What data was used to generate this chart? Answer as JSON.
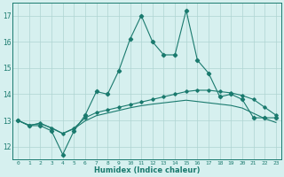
{
  "xlabel": "Humidex (Indice chaleur)",
  "x": [
    0,
    1,
    2,
    3,
    4,
    5,
    6,
    7,
    8,
    9,
    10,
    11,
    12,
    13,
    14,
    15,
    16,
    17,
    18,
    19,
    20,
    21,
    22,
    23
  ],
  "line1": [
    13.0,
    12.8,
    12.8,
    12.6,
    11.7,
    12.6,
    13.2,
    14.1,
    14.0,
    14.9,
    16.1,
    17.0,
    16.0,
    15.5,
    15.5,
    17.2,
    15.3,
    14.8,
    13.9,
    14.0,
    13.8,
    13.1,
    13.1,
    13.1
  ],
  "line2": [
    13.0,
    12.8,
    12.9,
    12.7,
    12.5,
    12.7,
    13.1,
    13.3,
    13.4,
    13.5,
    13.6,
    13.7,
    13.8,
    13.9,
    14.0,
    14.1,
    14.15,
    14.15,
    14.1,
    14.05,
    13.95,
    13.8,
    13.5,
    13.2
  ],
  "line3": [
    13.0,
    12.82,
    12.87,
    12.72,
    12.5,
    12.68,
    12.98,
    13.18,
    13.28,
    13.38,
    13.48,
    13.56,
    13.62,
    13.67,
    13.72,
    13.77,
    13.72,
    13.67,
    13.62,
    13.57,
    13.47,
    13.27,
    13.07,
    12.92
  ],
  "line_color": "#1a7a6e",
  "bg_color": "#d6f0ef",
  "grid_color": "#aed4d2",
  "ylim": [
    11.5,
    17.5
  ],
  "xlim": [
    -0.5,
    23.5
  ],
  "yticks": [
    12,
    13,
    14,
    15,
    16,
    17
  ],
  "xticks": [
    0,
    1,
    2,
    3,
    4,
    5,
    6,
    7,
    8,
    9,
    10,
    11,
    12,
    13,
    14,
    15,
    16,
    17,
    18,
    19,
    20,
    21,
    22,
    23
  ]
}
